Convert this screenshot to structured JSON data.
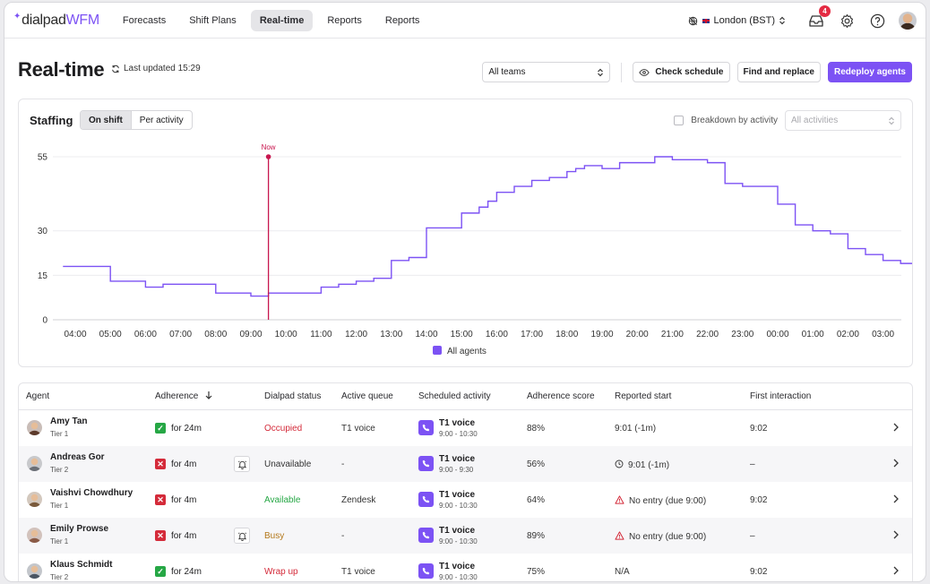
{
  "nav": {
    "logo_left": "dialpad",
    "logo_right": "WFM",
    "items": [
      {
        "label": "Forecasts",
        "active": false
      },
      {
        "label": "Shift Plans",
        "active": false
      },
      {
        "label": "Real-time",
        "active": true
      },
      {
        "label": "Reports",
        "active": false
      },
      {
        "label": "Reports",
        "active": false
      }
    ],
    "timezone": "London (BST)",
    "inbox_count": "4"
  },
  "header": {
    "title": "Real-time",
    "last_updated": "Last updated 15:29",
    "team_select": "All teams",
    "check_schedule": "Check schedule",
    "find_replace": "Find and replace",
    "redeploy": "Redeploy agents"
  },
  "staffing": {
    "title": "Staffing",
    "toggle_on_shift": "On shift",
    "toggle_per_activity": "Per activity",
    "breakdown_label": "Breakdown by activity",
    "activities_placeholder": "All activities"
  },
  "chart_data": {
    "type": "line",
    "x_ticks": [
      "04:00",
      "05:00",
      "06:00",
      "07:00",
      "08:00",
      "09:00",
      "10:00",
      "11:00",
      "12:00",
      "13:00",
      "14:00",
      "15:00",
      "16:00",
      "17:00",
      "18:00",
      "19:00",
      "20:00",
      "21:00",
      "22:00",
      "23:00",
      "00:00",
      "01:00",
      "02:00",
      "03:00"
    ],
    "y_ticks": [
      0,
      15,
      30,
      55
    ],
    "ylim": [
      0,
      55
    ],
    "now_label": "Now",
    "now_x": 9.5,
    "series": [
      {
        "name": "All agents",
        "color": "#7c52f4",
        "step": true,
        "x": [
          3.65,
          5.0,
          6.0,
          6.5,
          7.0,
          8.0,
          9.0,
          9.5,
          10.0,
          11.0,
          11.5,
          12.0,
          12.5,
          13.0,
          13.5,
          14.0,
          15.0,
          15.5,
          15.75,
          16.0,
          16.5,
          17.0,
          17.5,
          18.0,
          18.25,
          18.5,
          19.0,
          19.5,
          20.0,
          20.5,
          21.0,
          22.0,
          22.5,
          23.0,
          24.0,
          24.5,
          25.0,
          25.5,
          26.0,
          26.5,
          27.0,
          27.5,
          28.0,
          28.25,
          28.5,
          28.75
        ],
        "y": [
          18,
          13,
          11,
          12,
          12,
          9,
          8,
          9,
          9,
          11,
          12,
          13,
          14,
          20,
          21,
          31,
          36,
          38,
          40,
          43,
          45,
          47,
          48,
          50,
          51,
          52,
          51,
          53,
          53,
          55,
          54,
          53,
          46,
          45,
          39,
          32,
          30,
          29,
          24,
          22,
          20,
          19,
          17,
          16,
          15,
          14
        ]
      }
    ]
  },
  "table": {
    "columns": [
      "Agent",
      "Adherence",
      "Dialpad status",
      "Active queue",
      "Scheduled activity",
      "Adherence score",
      "Reported start",
      "First interaction"
    ],
    "rows": [
      {
        "name": "Amy Tan",
        "tier": "Tier 1",
        "adherence_ok": true,
        "adherence": "for 24m",
        "bell": false,
        "status": "Occupied",
        "status_color": "#d42b3a",
        "queue": "T1 voice",
        "activity": "T1 voice",
        "time": "9:00 - 10:30",
        "score": "88%",
        "reported": "9:01 (-1m)",
        "reported_icon": "none",
        "first": "9:02",
        "avatar": "#5c3a2a"
      },
      {
        "name": "Andreas Gor",
        "tier": "Tier 2",
        "adherence_ok": false,
        "adherence": "for 4m",
        "bell": true,
        "status": "Unavailable",
        "status_color": "#333333",
        "queue": "-",
        "activity": "T1 voice",
        "time": "9:00 - 9:30",
        "score": "56%",
        "reported": "9:01 (-1m)",
        "reported_icon": "clock-icon",
        "first": "–",
        "avatar": "#6b6f76"
      },
      {
        "name": "Vaishvi Chowdhury",
        "tier": "Tier 1",
        "adherence_ok": false,
        "adherence": "for 4m",
        "bell": false,
        "status": "Available",
        "status_color": "#26a745",
        "queue": "Zendesk",
        "activity": "T1 voice",
        "time": "9:00 - 10:30",
        "score": "64%",
        "reported": "No entry (due 9:00)",
        "reported_icon": "warning-icon",
        "first": "9:02",
        "avatar": "#7a5a3c"
      },
      {
        "name": "Emily Prowse",
        "tier": "Tier 1",
        "adherence_ok": false,
        "adherence": "for 4m",
        "bell": true,
        "status": "Busy",
        "status_color": "#b4781a",
        "queue": "-",
        "activity": "T1 voice",
        "time": "9:00 - 10:30",
        "score": "89%",
        "reported": "No entry (due 9:00)",
        "reported_icon": "warning-icon",
        "first": "–",
        "avatar": "#8a5a46"
      },
      {
        "name": "Klaus Schmidt",
        "tier": "Tier 2",
        "adherence_ok": true,
        "adherence": "for 24m",
        "bell": false,
        "status": "Wrap up",
        "status_color": "#d42b3a",
        "queue": "T1 voice",
        "activity": "T1 voice",
        "time": "9:00 - 10:30",
        "score": "75%",
        "reported": "N/A",
        "reported_icon": "none",
        "first": "9:02",
        "avatar": "#4a5563"
      }
    ]
  }
}
